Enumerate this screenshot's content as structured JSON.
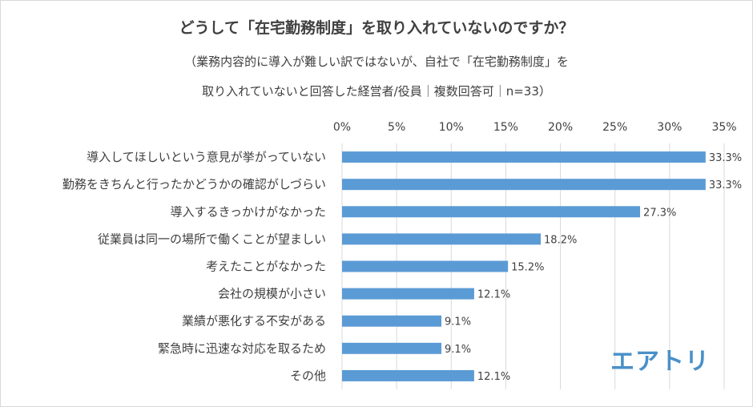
{
  "chart_data": {
    "type": "bar",
    "orientation": "horizontal",
    "title": "どうして「在宅勤務制度」を取り入れていないのですか？",
    "subtitle": [
      "（業務内容的に導入が難しい訳ではないが、自社で「在宅勤務制度」を",
      "取り入れていないと回答した経営者/役員｜複数回答可｜n=33）"
    ],
    "categories": [
      "導入してほしいという意見が挙がっていない",
      "勤務をきちんと行ったかどうかの確認がしづらい",
      "導入するきっかけがなかった",
      "従業員は同一の場所で働くことが望ましい",
      "考えたことがなかった",
      "会社の規模が小さい",
      "業績が悪化する不安がある",
      "緊急時に迅速な対応を取るため",
      "その他"
    ],
    "values": [
      33.3,
      33.3,
      27.3,
      18.2,
      15.2,
      12.1,
      9.1,
      9.1,
      12.1
    ],
    "data_labels": [
      "33.3%",
      "33.3%",
      "27.3%",
      "18.2%",
      "15.2%",
      "12.1%",
      "9.1%",
      "9.1%",
      "12.1%"
    ],
    "x_ticks": [
      "0%",
      "5%",
      "10%",
      "15%",
      "20%",
      "25%",
      "30%",
      "35%"
    ],
    "xlim": [
      0,
      35
    ],
    "grid": true,
    "bar_color": "#5b9bd5"
  },
  "logo_text": "エアトリ",
  "colors": {
    "grid": "#d9d9d9",
    "text": "#404040",
    "logo": "#4a90c8"
  }
}
